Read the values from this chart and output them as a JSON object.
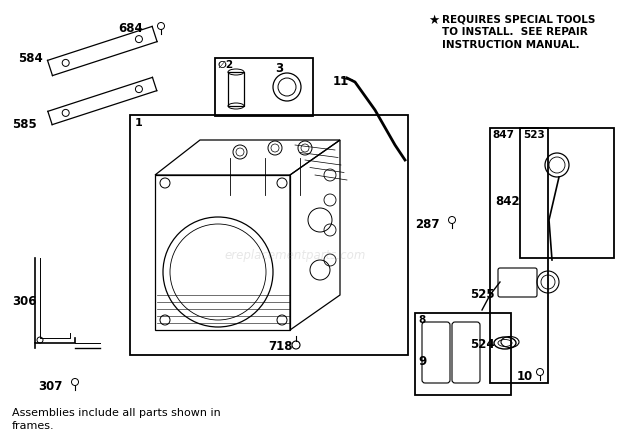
{
  "bg_color": "#ffffff",
  "footnote_line1": "Assemblies include all parts shown in",
  "footnote_line2": "frames.",
  "special_tools_line1": " REQUIRES SPECIAL TOOLS",
  "special_tools_line2": "  TO INSTALL.  SEE REPAIR",
  "special_tools_line3": "  INSTRUCTION MANUAL.",
  "watermark": "ereplacementparts.com",
  "fig_w": 6.2,
  "fig_h": 4.44,
  "dpi": 100
}
